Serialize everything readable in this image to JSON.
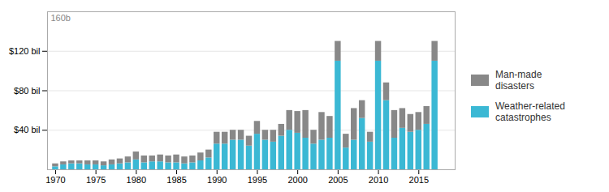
{
  "chart_data": {
    "type": "bar",
    "stacked": true,
    "annotation": "160b",
    "x": [
      1970,
      1971,
      1972,
      1973,
      1974,
      1975,
      1976,
      1977,
      1978,
      1979,
      1980,
      1981,
      1982,
      1983,
      1984,
      1985,
      1986,
      1987,
      1988,
      1989,
      1990,
      1991,
      1992,
      1993,
      1994,
      1995,
      1996,
      1997,
      1998,
      1999,
      2000,
      2001,
      2002,
      2003,
      2004,
      2005,
      2006,
      2007,
      2008,
      2009,
      2010,
      2011,
      2012,
      2013,
      2014,
      2015,
      2016,
      2017
    ],
    "series": [
      {
        "name": "Weather-related\ncatastrophes",
        "color": "#3bb8d4",
        "values": [
          3,
          5,
          6,
          6,
          5,
          5,
          4,
          5,
          6,
          7,
          10,
          7,
          8,
          8,
          7,
          7,
          6,
          7,
          9,
          12,
          26,
          26,
          30,
          30,
          24,
          36,
          30,
          28,
          34,
          40,
          37,
          32,
          26,
          30,
          32,
          110,
          22,
          30,
          52,
          28,
          110,
          70,
          32,
          42,
          38,
          40,
          46,
          110
        ]
      },
      {
        "name": "Man-made\ndisasters",
        "color": "#888888",
        "values": [
          3,
          3,
          3,
          3,
          4,
          4,
          4,
          5,
          5,
          6,
          8,
          7,
          6,
          7,
          7,
          8,
          7,
          7,
          8,
          8,
          12,
          12,
          10,
          10,
          10,
          13,
          10,
          12,
          12,
          20,
          22,
          28,
          14,
          28,
          22,
          20,
          14,
          32,
          18,
          10,
          20,
          18,
          28,
          20,
          18,
          18,
          18,
          20
        ]
      }
    ],
    "xlim": [
      1969,
      2019.5
    ],
    "xticks": [
      1970,
      1975,
      1980,
      1985,
      1990,
      1995,
      2000,
      2005,
      2010,
      2015
    ],
    "ylim": [
      0,
      160
    ],
    "yticks": [
      {
        "value": 40,
        "label": "$40 bil"
      },
      {
        "value": 80,
        "label": "$80 bil"
      },
      {
        "value": 120,
        "label": "$120 bil"
      }
    ],
    "grid": true,
    "legend": "right"
  }
}
